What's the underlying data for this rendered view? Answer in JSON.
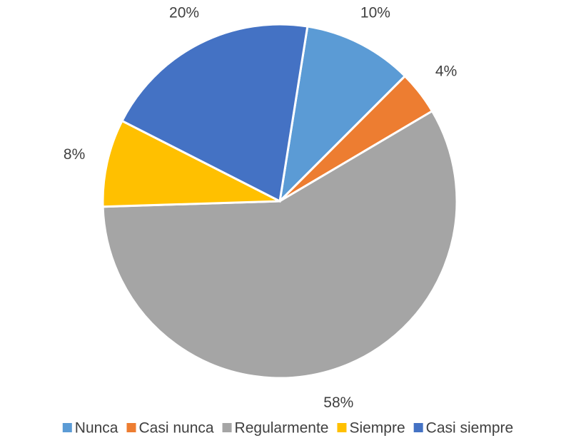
{
  "chart_data": {
    "type": "pie",
    "categories": [
      "Nunca",
      "Casi nunca",
      "Regularmente",
      "Siempre",
      "Casi siempre"
    ],
    "values": [
      10,
      4,
      58,
      8,
      20
    ],
    "value_labels": [
      "10%",
      "4%",
      "58%",
      "8%",
      "20%"
    ],
    "colors": [
      "#5b9bd5",
      "#ed7d31",
      "#a5a5a5",
      "#ffc000",
      "#4472c4"
    ],
    "legend": "bottom"
  }
}
